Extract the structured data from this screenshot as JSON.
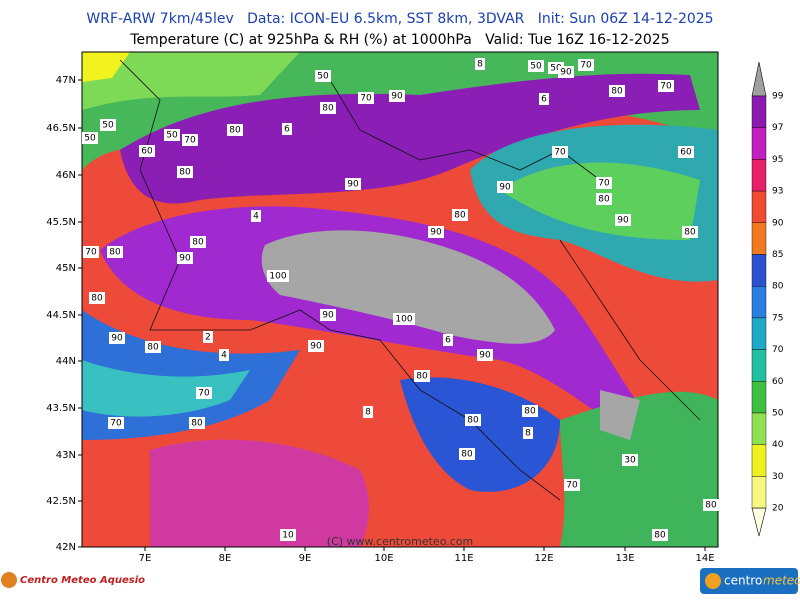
{
  "header": {
    "line1": "WRF-ARW 7km/45lev   Data: ICON-EU 6.5km, SST 8km, 3DVAR   Init: Sun 06Z 14-12-2025",
    "line2": "Temperature (C) at 925hPa & RH (%) at 1000hPa   Valid: Tue 16Z 16-12-2025"
  },
  "map": {
    "lat_labels": [
      "47N",
      "46.5N",
      "46N",
      "45.5N",
      "45N",
      "44.5N",
      "44N",
      "43.5N",
      "43N",
      "42.5N",
      "42N"
    ],
    "lon_labels": [
      "7E",
      "8E",
      "9E",
      "10E",
      "11E",
      "12E",
      "13E",
      "14E"
    ],
    "contour_labels": [
      50,
      8,
      50,
      50,
      90,
      70,
      70,
      90,
      80,
      6,
      80,
      70,
      50,
      50,
      50,
      70,
      80,
      6,
      60,
      80,
      90,
      90,
      70,
      60,
      70,
      80,
      4,
      80,
      90,
      90,
      80,
      70,
      80,
      80,
      90,
      80,
      100,
      90,
      100,
      90,
      2,
      80,
      6,
      4,
      90,
      90,
      80,
      70,
      8,
      70,
      80,
      80,
      80,
      8,
      80,
      30,
      70,
      80,
      10,
      80
    ],
    "watermark": "(C) www.centrometeo.com"
  },
  "colorbar": {
    "labels": [
      99,
      97,
      95,
      93,
      90,
      85,
      80,
      75,
      70,
      60,
      50,
      40,
      30,
      20
    ]
  },
  "footer": {
    "left_logo": "Centro Meteo Aquesio",
    "right_logo_a": "centro",
    "right_logo_b": "meteo"
  }
}
